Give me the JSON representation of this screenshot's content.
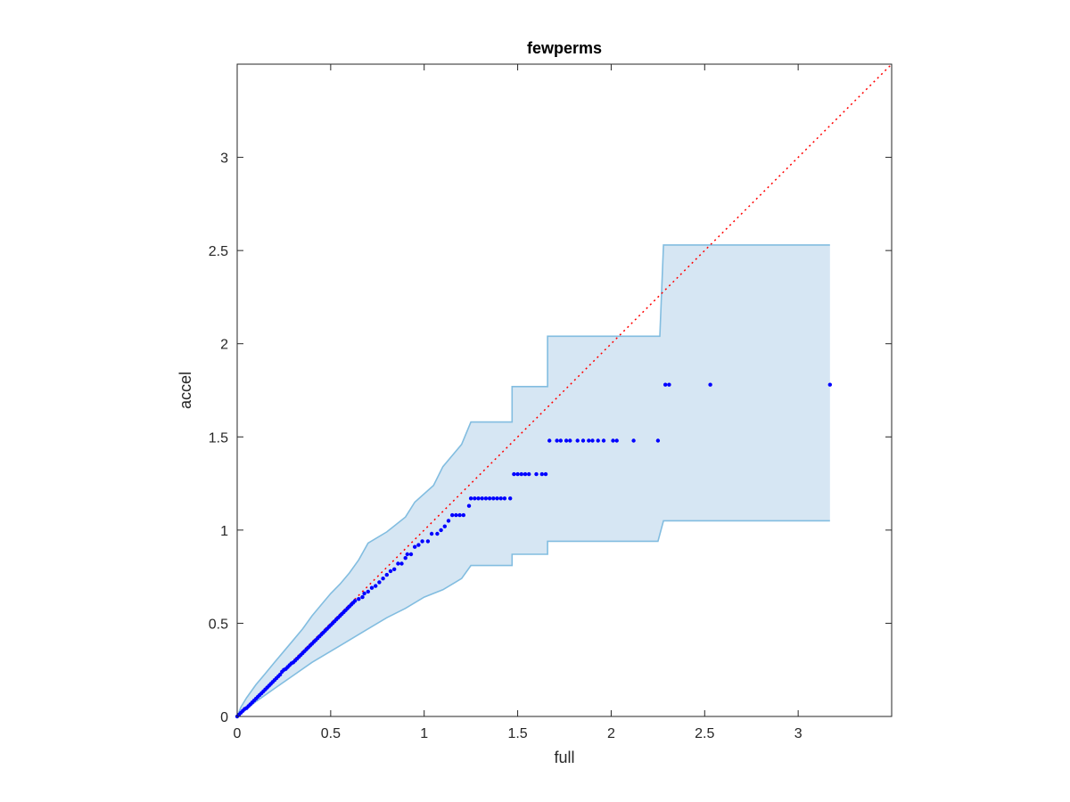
{
  "chart_data": {
    "type": "scatter",
    "title": "fewperms",
    "xlabel": "full",
    "ylabel": "accel",
    "xlim": [
      0,
      3.5
    ],
    "ylim": [
      0,
      3.5
    ],
    "xticks": [
      0,
      0.5,
      1,
      1.5,
      2,
      2.5,
      3
    ],
    "xtick_labels": [
      "0",
      "0.5",
      "1",
      "1.5",
      "2",
      "2.5",
      "3"
    ],
    "yticks": [
      0,
      0.5,
      1,
      1.5,
      2,
      2.5,
      3
    ],
    "ytick_labels": [
      "0",
      "0.5",
      "1",
      "1.5",
      "2",
      "2.5",
      "3"
    ],
    "grid": false,
    "reference_line": {
      "style": "dotted",
      "color": "#ff0000",
      "from": [
        0,
        0
      ],
      "to": [
        3.5,
        3.5
      ]
    },
    "band": {
      "fill_color": "#d6e6f3",
      "edge_color": "#82bde0",
      "upper": [
        [
          0.0,
          0.0
        ],
        [
          0.02,
          0.05
        ],
        [
          0.05,
          0.1
        ],
        [
          0.1,
          0.17
        ],
        [
          0.15,
          0.23
        ],
        [
          0.2,
          0.29
        ],
        [
          0.25,
          0.35
        ],
        [
          0.3,
          0.41
        ],
        [
          0.35,
          0.47
        ],
        [
          0.4,
          0.54
        ],
        [
          0.45,
          0.6
        ],
        [
          0.5,
          0.66
        ],
        [
          0.55,
          0.71
        ],
        [
          0.6,
          0.77
        ],
        [
          0.65,
          0.84
        ],
        [
          0.7,
          0.93
        ],
        [
          0.8,
          0.99
        ],
        [
          0.9,
          1.07
        ],
        [
          0.95,
          1.15
        ],
        [
          1.05,
          1.24
        ],
        [
          1.1,
          1.34
        ],
        [
          1.2,
          1.46
        ],
        [
          1.25,
          1.58
        ],
        [
          1.47,
          1.58
        ],
        [
          1.47,
          1.77
        ],
        [
          1.66,
          1.77
        ],
        [
          1.66,
          2.04
        ],
        [
          2.26,
          2.04
        ],
        [
          2.28,
          2.53
        ],
        [
          3.17,
          2.53
        ]
      ],
      "lower": [
        [
          3.17,
          1.05
        ],
        [
          2.28,
          1.05
        ],
        [
          2.25,
          0.94
        ],
        [
          1.66,
          0.94
        ],
        [
          1.66,
          0.87
        ],
        [
          1.47,
          0.87
        ],
        [
          1.47,
          0.81
        ],
        [
          1.25,
          0.81
        ],
        [
          1.2,
          0.74
        ],
        [
          1.1,
          0.68
        ],
        [
          1.0,
          0.64
        ],
        [
          0.9,
          0.58
        ],
        [
          0.8,
          0.53
        ],
        [
          0.7,
          0.47
        ],
        [
          0.6,
          0.41
        ],
        [
          0.5,
          0.35
        ],
        [
          0.4,
          0.29
        ],
        [
          0.3,
          0.22
        ],
        [
          0.2,
          0.15
        ],
        [
          0.1,
          0.08
        ],
        [
          0.05,
          0.04
        ],
        [
          0.0,
          0.0
        ]
      ]
    },
    "series": [
      {
        "color": "#0000ff",
        "marker": "dot",
        "points": [
          [
            0.0,
            0.0
          ],
          [
            0.01,
            0.01
          ],
          [
            0.02,
            0.02
          ],
          [
            0.03,
            0.03
          ],
          [
            0.04,
            0.04
          ],
          [
            0.05,
            0.045
          ],
          [
            0.06,
            0.055
          ],
          [
            0.07,
            0.065
          ],
          [
            0.08,
            0.075
          ],
          [
            0.09,
            0.085
          ],
          [
            0.1,
            0.095
          ],
          [
            0.11,
            0.105
          ],
          [
            0.12,
            0.115
          ],
          [
            0.13,
            0.125
          ],
          [
            0.14,
            0.135
          ],
          [
            0.15,
            0.145
          ],
          [
            0.16,
            0.155
          ],
          [
            0.17,
            0.165
          ],
          [
            0.18,
            0.175
          ],
          [
            0.19,
            0.185
          ],
          [
            0.2,
            0.195
          ],
          [
            0.21,
            0.205
          ],
          [
            0.22,
            0.215
          ],
          [
            0.23,
            0.225
          ],
          [
            0.24,
            0.24
          ],
          [
            0.25,
            0.25
          ],
          [
            0.26,
            0.255
          ],
          [
            0.27,
            0.265
          ],
          [
            0.28,
            0.275
          ],
          [
            0.29,
            0.285
          ],
          [
            0.3,
            0.29
          ],
          [
            0.31,
            0.3
          ],
          [
            0.32,
            0.31
          ],
          [
            0.33,
            0.32
          ],
          [
            0.34,
            0.33
          ],
          [
            0.35,
            0.34
          ],
          [
            0.36,
            0.35
          ],
          [
            0.37,
            0.36
          ],
          [
            0.38,
            0.37
          ],
          [
            0.39,
            0.38
          ],
          [
            0.4,
            0.39
          ],
          [
            0.41,
            0.4
          ],
          [
            0.42,
            0.41
          ],
          [
            0.43,
            0.42
          ],
          [
            0.44,
            0.43
          ],
          [
            0.45,
            0.44
          ],
          [
            0.46,
            0.45
          ],
          [
            0.47,
            0.46
          ],
          [
            0.48,
            0.47
          ],
          [
            0.49,
            0.48
          ],
          [
            0.5,
            0.49
          ],
          [
            0.51,
            0.5
          ],
          [
            0.52,
            0.51
          ],
          [
            0.53,
            0.52
          ],
          [
            0.54,
            0.53
          ],
          [
            0.55,
            0.54
          ],
          [
            0.56,
            0.55
          ],
          [
            0.57,
            0.56
          ],
          [
            0.58,
            0.57
          ],
          [
            0.59,
            0.58
          ],
          [
            0.6,
            0.59
          ],
          [
            0.61,
            0.6
          ],
          [
            0.62,
            0.61
          ],
          [
            0.63,
            0.62
          ],
          [
            0.65,
            0.63
          ],
          [
            0.67,
            0.64
          ],
          [
            0.68,
            0.66
          ],
          [
            0.7,
            0.67
          ],
          [
            0.72,
            0.69
          ],
          [
            0.74,
            0.7
          ],
          [
            0.76,
            0.72
          ],
          [
            0.78,
            0.74
          ],
          [
            0.8,
            0.76
          ],
          [
            0.82,
            0.78
          ],
          [
            0.84,
            0.79
          ],
          [
            0.86,
            0.82
          ],
          [
            0.88,
            0.82
          ],
          [
            0.9,
            0.85
          ],
          [
            0.91,
            0.87
          ],
          [
            0.93,
            0.87
          ],
          [
            0.95,
            0.91
          ],
          [
            0.97,
            0.92
          ],
          [
            0.99,
            0.94
          ],
          [
            1.02,
            0.94
          ],
          [
            1.04,
            0.98
          ],
          [
            1.07,
            0.98
          ],
          [
            1.09,
            1.0
          ],
          [
            1.11,
            1.02
          ],
          [
            1.13,
            1.05
          ],
          [
            1.15,
            1.08
          ],
          [
            1.17,
            1.08
          ],
          [
            1.19,
            1.08
          ],
          [
            1.21,
            1.08
          ],
          [
            1.24,
            1.13
          ],
          [
            1.25,
            1.17
          ],
          [
            1.27,
            1.17
          ],
          [
            1.29,
            1.17
          ],
          [
            1.31,
            1.17
          ],
          [
            1.33,
            1.17
          ],
          [
            1.35,
            1.17
          ],
          [
            1.37,
            1.17
          ],
          [
            1.39,
            1.17
          ],
          [
            1.41,
            1.17
          ],
          [
            1.43,
            1.17
          ],
          [
            1.46,
            1.17
          ],
          [
            1.48,
            1.3
          ],
          [
            1.5,
            1.3
          ],
          [
            1.52,
            1.3
          ],
          [
            1.54,
            1.3
          ],
          [
            1.56,
            1.3
          ],
          [
            1.6,
            1.3
          ],
          [
            1.63,
            1.3
          ],
          [
            1.65,
            1.3
          ],
          [
            1.67,
            1.48
          ],
          [
            1.71,
            1.48
          ],
          [
            1.73,
            1.48
          ],
          [
            1.76,
            1.48
          ],
          [
            1.78,
            1.48
          ],
          [
            1.82,
            1.48
          ],
          [
            1.85,
            1.48
          ],
          [
            1.88,
            1.48
          ],
          [
            1.9,
            1.48
          ],
          [
            1.93,
            1.48
          ],
          [
            1.96,
            1.48
          ],
          [
            2.01,
            1.48
          ],
          [
            2.03,
            1.48
          ],
          [
            2.12,
            1.48
          ],
          [
            2.25,
            1.48
          ],
          [
            2.29,
            1.78
          ],
          [
            2.31,
            1.78
          ],
          [
            2.53,
            1.78
          ],
          [
            3.17,
            1.78
          ]
        ]
      }
    ]
  }
}
